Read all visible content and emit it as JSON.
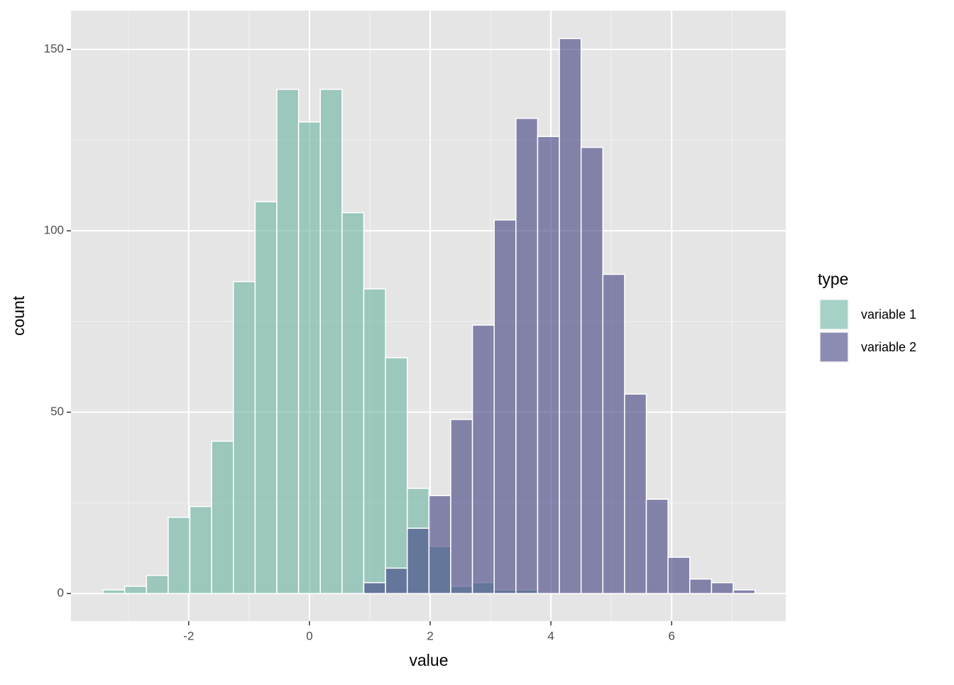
{
  "chart_data": {
    "type": "histogram",
    "x_label": "value",
    "y_label": "count",
    "legend_title": "type",
    "bins": [
      -3.42,
      -3.06,
      -2.7,
      -2.34,
      -1.98,
      -1.62,
      -1.26,
      -0.9,
      -0.54,
      -0.18,
      0.18,
      0.54,
      0.9,
      1.26,
      1.62,
      1.98,
      2.34,
      2.7,
      3.06,
      3.42,
      3.78,
      4.14,
      4.5,
      4.86,
      5.22,
      5.58,
      5.94,
      6.3,
      6.66,
      7.02,
      7.38
    ],
    "series": [
      {
        "name": "variable 1",
        "color": "#69b3a2",
        "values": [
          1,
          2,
          5,
          21,
          24,
          42,
          86,
          108,
          139,
          130,
          139,
          105,
          84,
          65,
          29,
          13,
          2,
          3,
          1,
          1,
          0,
          0,
          0,
          0,
          0,
          0,
          0,
          0,
          0,
          0
        ]
      },
      {
        "name": "variable 2",
        "color": "#404080",
        "values": [
          0,
          0,
          0,
          0,
          0,
          0,
          0,
          0,
          0,
          0,
          0,
          0,
          3,
          7,
          18,
          27,
          48,
          74,
          103,
          131,
          126,
          153,
          123,
          88,
          55,
          26,
          10,
          4,
          3,
          1
        ]
      }
    ],
    "xlim": [
      -3.95,
      7.89
    ],
    "ylim": [
      -7.6,
      160.7
    ],
    "xticks": [
      -2,
      0,
      2,
      4,
      6
    ],
    "yticks": [
      0,
      50,
      100,
      150
    ],
    "x_minor_ticks": [
      -3,
      -1,
      1,
      3,
      5,
      7
    ],
    "y_minor_ticks": [
      25,
      75,
      125
    ],
    "grid": true,
    "legend_position": "right"
  }
}
